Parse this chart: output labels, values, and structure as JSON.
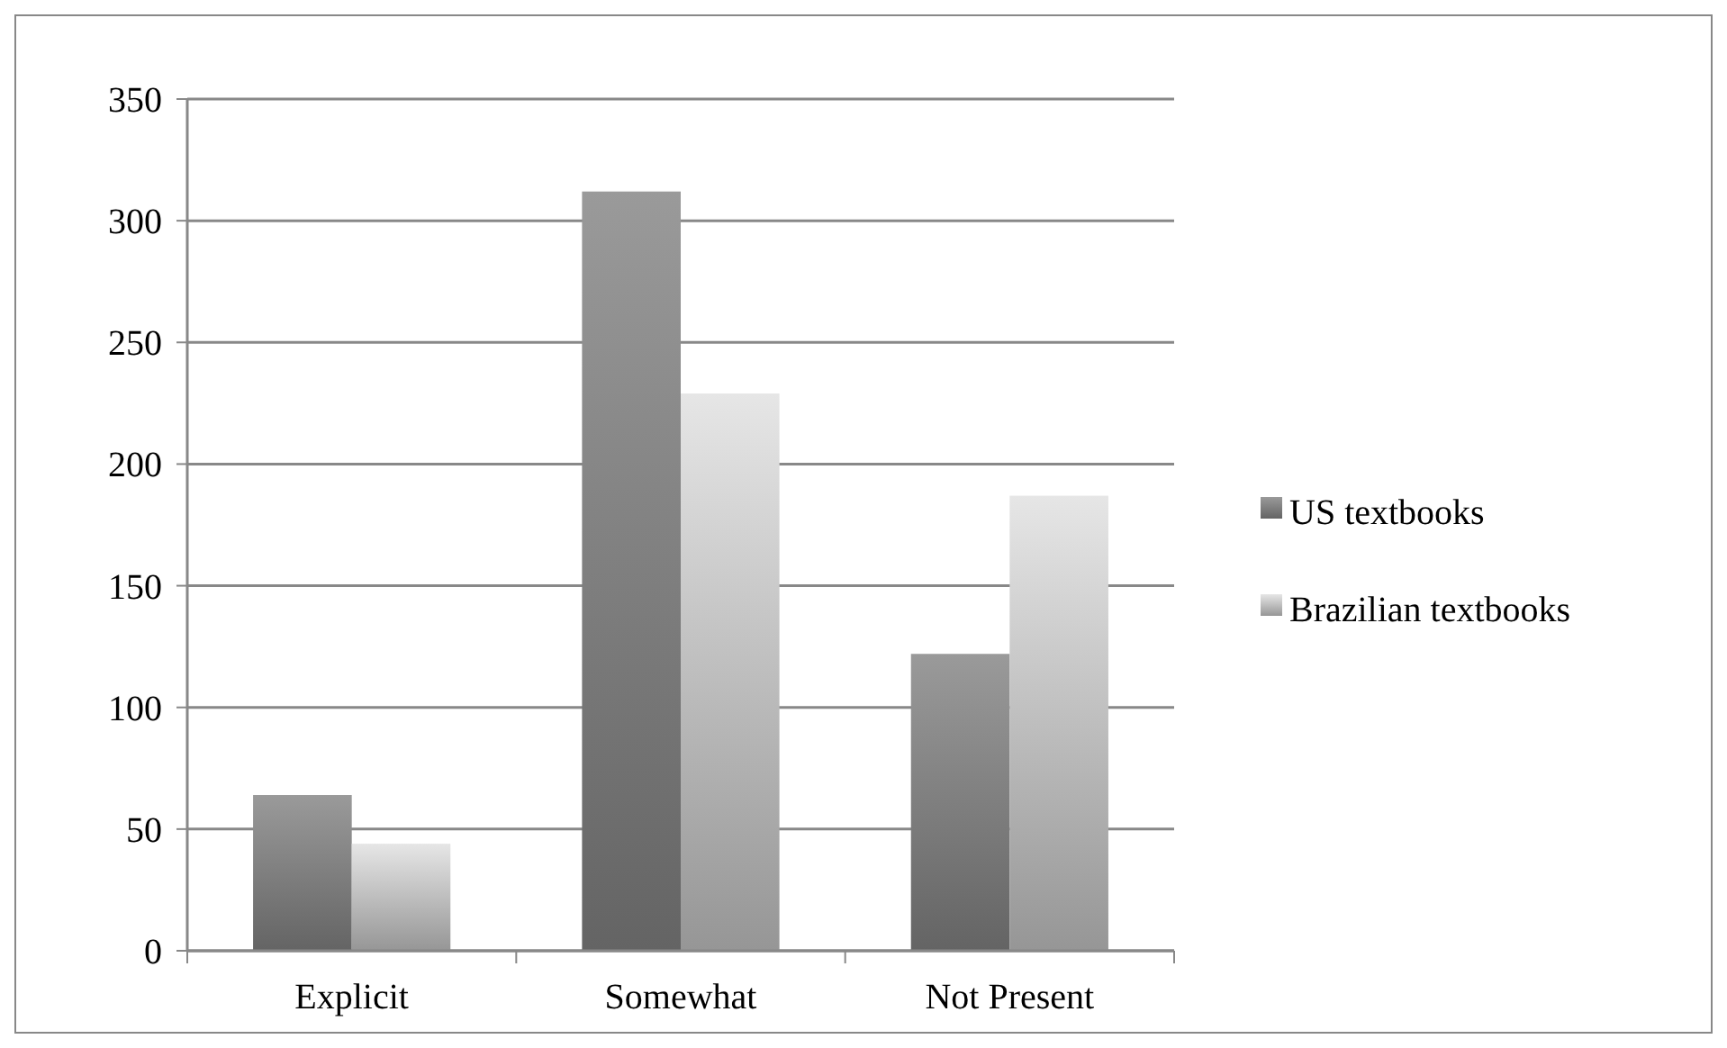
{
  "chart_data": {
    "type": "bar",
    "categories": [
      "Explicit",
      "Somewhat",
      "Not Present"
    ],
    "series": [
      {
        "name": "US textbooks",
        "color": "#8a8a8a",
        "values": [
          64,
          312,
          122
        ]
      },
      {
        "name": "Brazilian textbooks",
        "color": "#cfcfcf",
        "values": [
          44,
          229,
          187
        ]
      }
    ],
    "ylim": [
      0,
      350
    ],
    "yticks": [
      0,
      50,
      100,
      150,
      200,
      250,
      300,
      350
    ],
    "grid": "y",
    "legend": "right"
  }
}
